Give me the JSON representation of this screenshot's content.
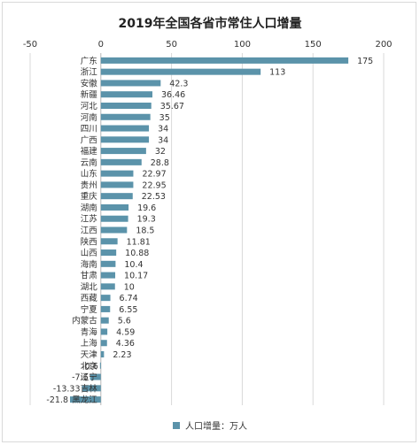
{
  "chart_data": {
    "type": "bar",
    "orientation": "horizontal",
    "title": "2019年全国各省市常住人口增量",
    "xlim": [
      -50,
      200
    ],
    "xticks": [
      "-50",
      "0",
      "50",
      "100",
      "150",
      "200"
    ],
    "grid": true,
    "legend_position": "bottom",
    "colors": {
      "bar": "#5b93aa",
      "grid": "#d9d9d9",
      "axis": "#bfbfbf",
      "text": "#333333"
    },
    "categories": [
      "广东",
      "浙江",
      "安徽",
      "新疆",
      "河北",
      "河南",
      "四川",
      "广西",
      "福建",
      "云南",
      "山东",
      "贵州",
      "重庆",
      "湖南",
      "江苏",
      "江西",
      "陕西",
      "山西",
      "海南",
      "甘肃",
      "湖北",
      "西藏",
      "宁夏",
      "内蒙古",
      "青海",
      "上海",
      "天津",
      "北京",
      "辽宁",
      "吉林",
      "黑龙江"
    ],
    "series": [
      {
        "name": "人口增量：万人",
        "values": [
          175,
          113,
          42.3,
          36.46,
          35.67,
          35,
          34,
          34,
          32,
          28.8,
          22.97,
          22.95,
          22.53,
          19.6,
          19.3,
          18.5,
          11.81,
          10.88,
          10.4,
          10.17,
          10,
          6.74,
          6.55,
          5.6,
          4.59,
          4.36,
          2.23,
          -0.6,
          -7.6,
          -13.33,
          -21.8
        ],
        "labels": [
          "175",
          "113",
          "42.3",
          "36.46",
          "35.67",
          "35",
          "34",
          "34",
          "32",
          "28.8",
          "22.97",
          "22.95",
          "22.53",
          "19.6",
          "19.3",
          "18.5",
          "11.81",
          "10.88",
          "10.4",
          "10.17",
          "10",
          "6.74",
          "6.55",
          "5.6",
          "4.59",
          "4.36",
          "2.23",
          "-0.6",
          "-7.6",
          "-13.33",
          "-21.8"
        ]
      }
    ]
  }
}
